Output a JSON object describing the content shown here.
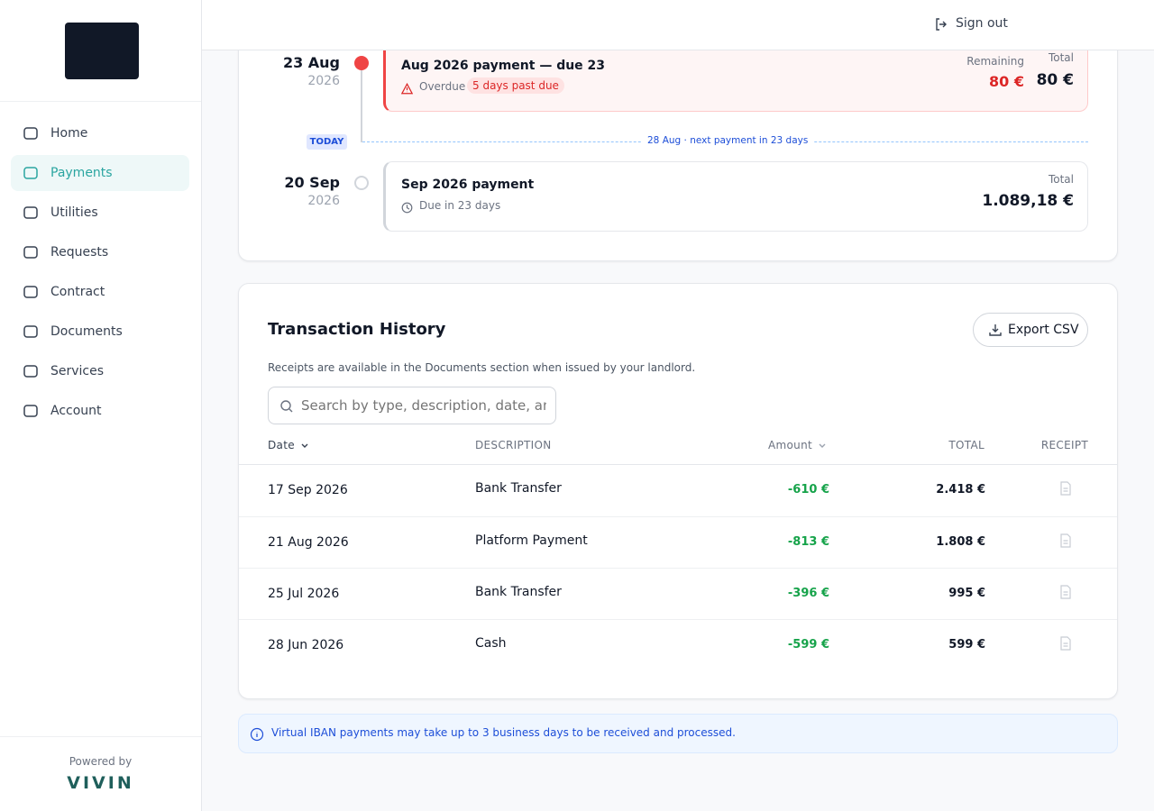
{
  "sidebar": {
    "nav": [
      {
        "label": "Home",
        "active": false
      },
      {
        "label": "Payments",
        "active": true
      },
      {
        "label": "Utilities",
        "active": false
      },
      {
        "label": "Requests",
        "active": false
      },
      {
        "label": "Contract",
        "active": false
      },
      {
        "label": "Documents",
        "active": false
      },
      {
        "label": "Services",
        "active": false
      },
      {
        "label": "Account",
        "active": false
      }
    ],
    "powered_by": "Powered by",
    "brand": "VIVIN"
  },
  "header": {
    "sign_out": "Sign out"
  },
  "timeline": {
    "items": [
      {
        "day": "23 Aug",
        "year": "2026",
        "title": "Aug 2026 payment — due 23",
        "status": "Overdue",
        "badge": "5 days past due",
        "remaining_label": "Remaining",
        "remaining": "80 €",
        "total_label": "Total",
        "total": "80 €",
        "overdue": true
      },
      {
        "day": "20 Sep",
        "year": "2026",
        "title": "Sep 2026 payment",
        "status": "Due in 23 days",
        "total_label": "Total",
        "total": "1.089,18 €",
        "overdue": false
      }
    ],
    "today_label": "TODAY",
    "today_note": "28 Aug · next payment in 23 days"
  },
  "history": {
    "title": "Transaction History",
    "export": "Export CSV",
    "note": "Receipts are available in the Documents section when issued by your landlord.",
    "search_placeholder": "Search by type, description, date, amount",
    "columns": [
      "Date",
      "DESCRIPTION",
      "Amount",
      "TOTAL",
      "RECEIPT"
    ],
    "rows": [
      [
        "17 Sep 2026",
        "Bank Transfer",
        "-610 €",
        "2.418 €"
      ],
      [
        "21 Aug 2026",
        "Platform Payment",
        "-813 €",
        "1.808 €"
      ],
      [
        "25 Jul 2026",
        "Bank Transfer",
        "-396 €",
        "995 €"
      ],
      [
        "28 Jun 2026",
        "Cash",
        "-599 €",
        "599 €"
      ]
    ]
  },
  "info": {
    "text": "Virtual IBAN payments may take up to 3 business days to be received and processed."
  }
}
